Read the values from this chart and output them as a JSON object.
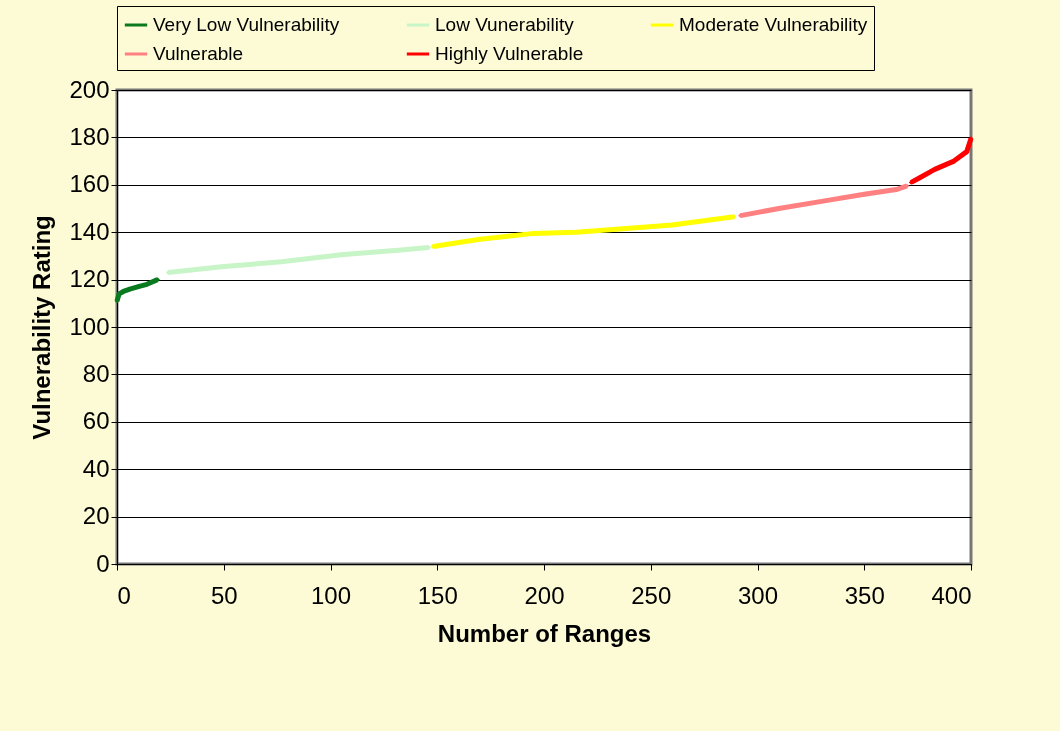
{
  "chart_data": {
    "type": "line",
    "xlabel": "Number of Ranges",
    "ylabel": "Vulnerability Rating",
    "xlim": [
      0,
      400
    ],
    "xticks": [
      0,
      50,
      100,
      150,
      200,
      250,
      300,
      350,
      400
    ],
    "ylim": [
      0,
      200
    ],
    "yticks": [
      0,
      20,
      40,
      60,
      80,
      100,
      120,
      140,
      160,
      180,
      200
    ],
    "grid": "y",
    "legend": "top",
    "marker": "diamond",
    "line_style": "solid",
    "series": [
      {
        "name": "Very Low Vulnerability",
        "color": "#0a7a1e",
        "x": [
          0,
          1,
          3,
          6,
          10,
          14,
          19
        ],
        "values": [
          111,
          114,
          115,
          116,
          117,
          118,
          120
        ]
      },
      {
        "name": "Low Vunerability",
        "color": "#c8f5c8",
        "x": [
          24,
          50,
          77,
          105,
          133,
          146
        ],
        "values": [
          123,
          125.5,
          127.5,
          130.5,
          132.5,
          133.5
        ]
      },
      {
        "name": "Moderate Vulnerability",
        "color": "#ffff00",
        "x": [
          148,
          170,
          195,
          215,
          237,
          260,
          289
        ],
        "values": [
          134,
          137,
          139.5,
          140,
          141.5,
          143,
          146.5
        ]
      },
      {
        "name": "Vulnerable",
        "color": "#ff8080",
        "x": [
          292,
          310,
          330,
          350,
          365,
          370
        ],
        "values": [
          147,
          150,
          153,
          156,
          158,
          159.5
        ]
      },
      {
        "name": "Highly Vulnerable",
        "color": "#ff0000",
        "x": [
          372,
          376,
          383,
          392,
          398,
          400
        ],
        "values": [
          161,
          163,
          166.5,
          170,
          174,
          179.5
        ]
      }
    ]
  }
}
